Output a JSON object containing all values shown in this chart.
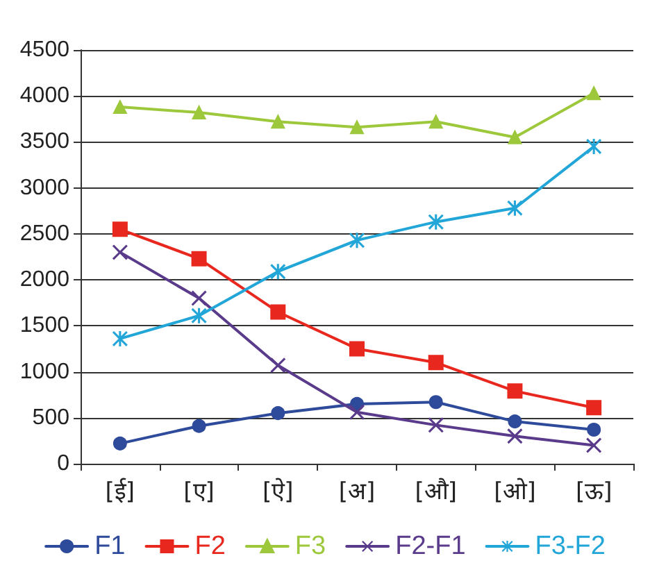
{
  "chart_data": {
    "type": "line",
    "categories": [
      "[ई]",
      "[ए]",
      "[ऐ]",
      "[अ]",
      "[औ]",
      "[ओ]",
      "[ऊ]"
    ],
    "series": [
      {
        "name": "F1",
        "color": "#2e4a9a",
        "marker": "circle",
        "values": [
          220,
          410,
          550,
          650,
          670,
          460,
          370
        ]
      },
      {
        "name": "F2",
        "color": "#e8281e",
        "marker": "square",
        "values": [
          2550,
          2230,
          1650,
          1250,
          1100,
          790,
          610
        ]
      },
      {
        "name": "F3",
        "color": "#9dc83c",
        "marker": "triangle",
        "values": [
          3880,
          3820,
          3720,
          3660,
          3720,
          3550,
          4030
        ]
      },
      {
        "name": "F2-F1",
        "color": "#5a3a8a",
        "marker": "cross",
        "values": [
          2300,
          1800,
          1070,
          560,
          420,
          300,
          200
        ]
      },
      {
        "name": "F3-F2",
        "color": "#22a6d8",
        "marker": "star",
        "values": [
          1360,
          1610,
          2090,
          2430,
          2630,
          2780,
          3450
        ]
      }
    ],
    "ylim": [
      0,
      4500
    ],
    "yticks": [
      0,
      500,
      1000,
      1500,
      2000,
      2500,
      3000,
      3500,
      4000,
      4500
    ],
    "grid": "y",
    "legend": "bottom",
    "line_style": "solid"
  }
}
